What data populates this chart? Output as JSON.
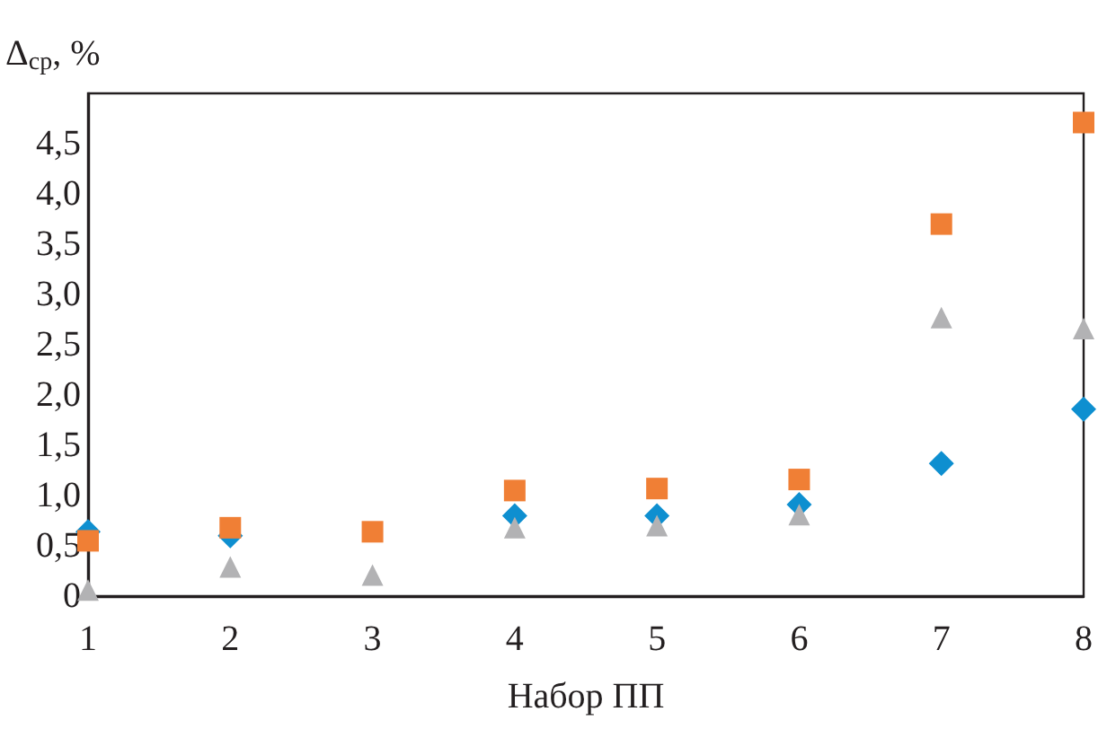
{
  "chart_data": {
    "type": "scatter",
    "xlabel": "Набор ПП",
    "ylabel": "Δ$_{ср}$, %",
    "x": [
      1,
      2,
      3,
      4,
      5,
      6,
      7,
      8
    ],
    "series": [
      {
        "color": "#0e8fd0",
        "marker": "diamond",
        "values": [
          0.64,
          0.6,
          null,
          0.8,
          0.8,
          0.91,
          1.32,
          1.86
        ]
      },
      {
        "color": "#f07f35",
        "marker": "square",
        "values": [
          0.55,
          0.68,
          0.64,
          1.05,
          1.07,
          1.16,
          3.7,
          4.71
        ]
      },
      {
        "color": "#b2b2b4",
        "marker": "triangle",
        "values": [
          0.06,
          0.29,
          0.21,
          0.68,
          0.7,
          0.81,
          2.77,
          2.66
        ]
      }
    ],
    "xlim": [
      1,
      8
    ],
    "xticks": [
      1,
      2,
      3,
      4,
      5,
      6,
      7,
      8
    ],
    "ylim": [
      0,
      5
    ],
    "yticks": [
      0,
      {
        "value": 0.5,
        "label": "0,5"
      },
      {
        "value": 1,
        "label": "1,0"
      },
      {
        "value": 1.5,
        "label": "1,5"
      },
      {
        "value": 2,
        "label": "2,0"
      },
      {
        "value": 2.5,
        "label": "2,5"
      },
      {
        "value": 3,
        "label": "3,0"
      },
      {
        "value": 3.5,
        "label": "3,5"
      },
      {
        "value": 4,
        "label": "4,0"
      },
      {
        "value": 4.5,
        "label": "4,5"
      }
    ],
    "grid": false
  }
}
